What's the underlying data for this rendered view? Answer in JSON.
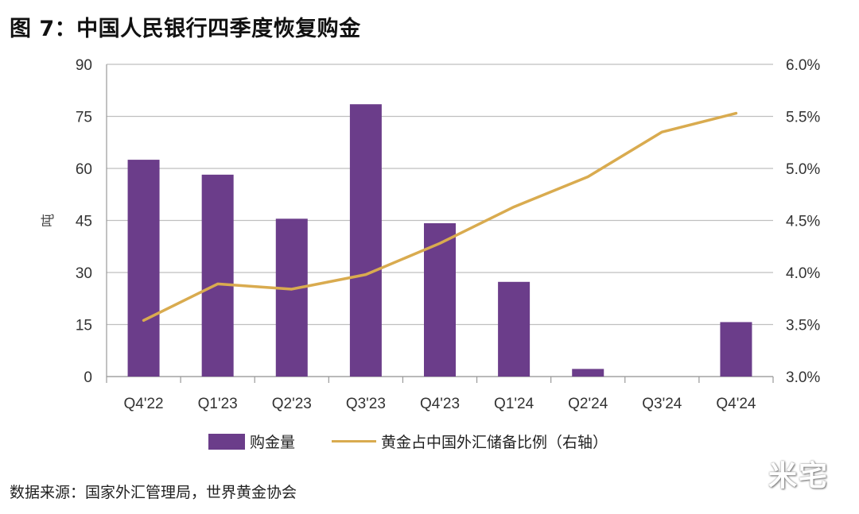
{
  "title": "图 7：中国人民银行四季度恢复购金",
  "source": "数据来源：国家外汇管理局，世界黄金协会",
  "watermark": "米宅",
  "colors": {
    "bar": "#6b3d8a",
    "line": "#d9ab4f",
    "grid": "#bfbfbf"
  },
  "chart_data": {
    "type": "bar",
    "categories": [
      "Q4'22",
      "Q1'23",
      "Q2'23",
      "Q3'23",
      "Q4'23",
      "Q1'24",
      "Q2'24",
      "Q3'24",
      "Q4'24"
    ],
    "ylabel": "吨",
    "ylim": [
      0,
      90
    ],
    "yticks": [
      "0",
      "15",
      "30",
      "45",
      "60",
      "75",
      "90"
    ],
    "y2lim": [
      3.0,
      6.0
    ],
    "y2ticks": [
      "3.0%",
      "3.5%",
      "4.0%",
      "4.5%",
      "5.0%",
      "5.5%",
      "6.0%"
    ],
    "grid": true,
    "legend_position": "bottom",
    "series": [
      {
        "name": "购金量",
        "type": "bar",
        "axis": "left",
        "values": [
          62.5,
          58.2,
          45.5,
          78.5,
          44.2,
          27.3,
          2.2,
          0,
          15.7
        ]
      },
      {
        "name": "黄金占中国外汇储备比例（右轴）",
        "type": "line",
        "axis": "right",
        "values": [
          3.54,
          3.89,
          3.84,
          3.98,
          4.28,
          4.63,
          4.92,
          5.35,
          5.53
        ]
      }
    ]
  }
}
